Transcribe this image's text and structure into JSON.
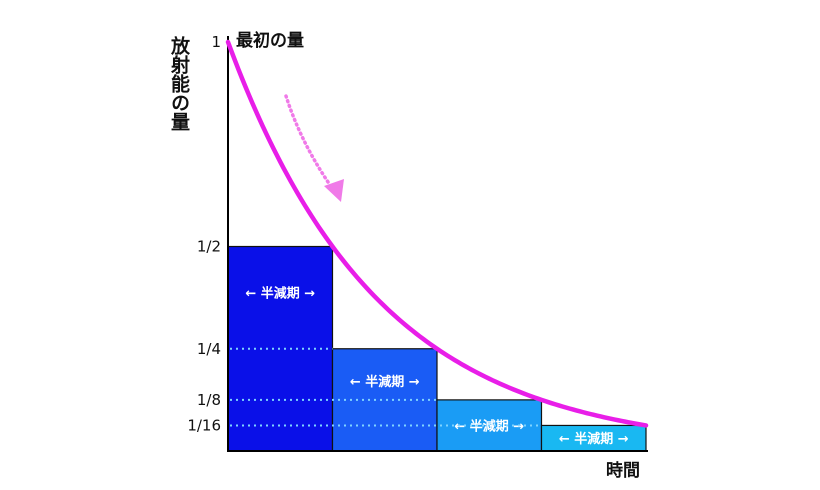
{
  "chart_data": {
    "type": "bar",
    "ylabel": "放射能の量",
    "xlabel": "時間",
    "curve_annotation": "最初の量",
    "y_ticks": [
      "1",
      "1/2",
      "1/4",
      "1/8",
      "1/16"
    ],
    "y_tick_values": [
      1,
      0.5,
      0.25,
      0.125,
      0.0625
    ],
    "x_range": [
      0,
      4
    ],
    "ylim": [
      0,
      1
    ],
    "bars": [
      {
        "x_start": 0,
        "x_end": 1,
        "value": 0.5,
        "label": "← 半減期 →",
        "color": "#0a10e8"
      },
      {
        "x_start": 1,
        "x_end": 2,
        "value": 0.25,
        "label": "← 半減期 →",
        "color": "#1a5cf5"
      },
      {
        "x_start": 2,
        "x_end": 3,
        "value": 0.125,
        "label": "← 半減期 →",
        "color": "#1a9cf5"
      },
      {
        "x_start": 3,
        "x_end": 4,
        "value": 0.0625,
        "label": "← 半減期 →",
        "color": "#19b8f2"
      }
    ],
    "curve": {
      "type": "exponential_decay",
      "initial": 1,
      "half_life": 1,
      "color": "#e81ee8"
    },
    "guide_line_color": "#7fd4ff",
    "arrow_color": "#f07ae8"
  }
}
